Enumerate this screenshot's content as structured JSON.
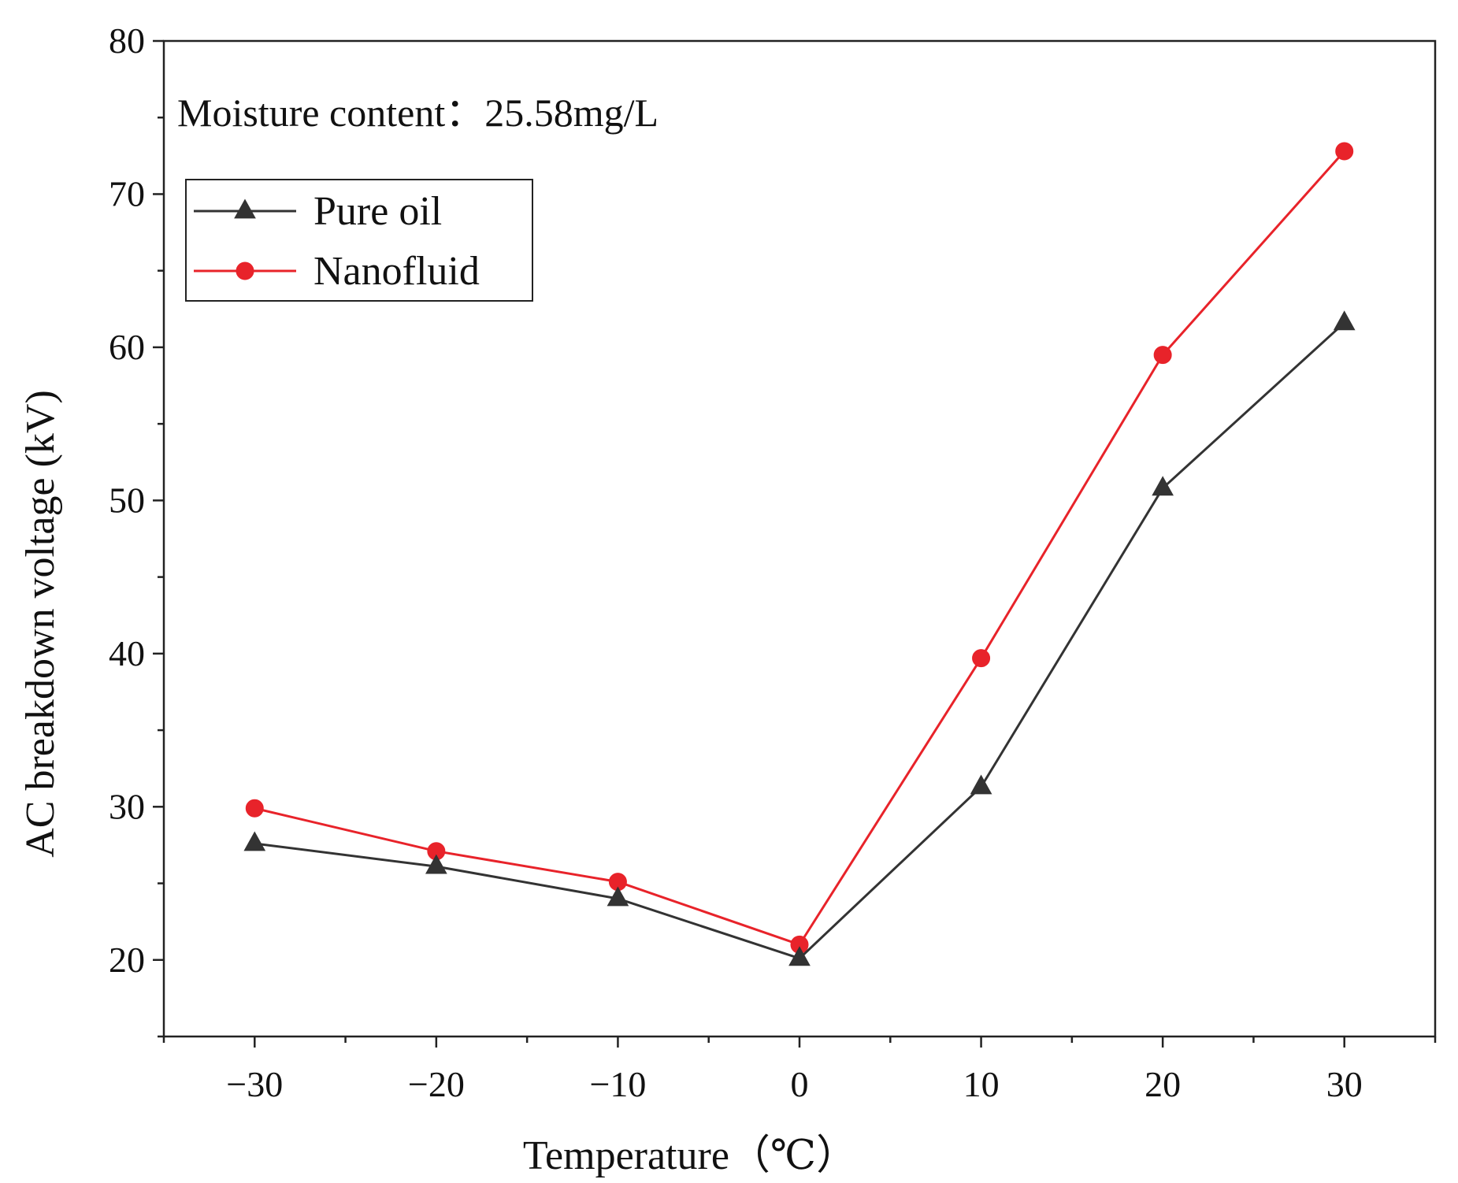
{
  "chart_data": {
    "type": "line",
    "title": "",
    "xlabel": "Temperature（℃）",
    "ylabel": "AC breakdown voltage (kV)",
    "annotation": "Moisture content：25.58mg/L",
    "x": [
      -30,
      -20,
      -10,
      0,
      10,
      20,
      30
    ],
    "xlim": [
      -35,
      35
    ],
    "ylim": [
      15,
      80
    ],
    "xticks": [
      -30,
      -20,
      -10,
      0,
      10,
      20,
      30
    ],
    "xtick_labels": [
      "−30",
      "−20",
      "−10",
      "0",
      "10",
      "20",
      "30"
    ],
    "yticks": [
      20,
      30,
      40,
      50,
      60,
      70,
      80
    ],
    "ytick_labels": [
      "20",
      "30",
      "40",
      "50",
      "60",
      "70",
      "80"
    ],
    "legend_position": "top-left",
    "grid": false,
    "series": [
      {
        "name": "Pure oil",
        "color": "#333333",
        "marker": "triangle",
        "values": [
          27.6,
          26.1,
          24.0,
          20.1,
          31.3,
          50.8,
          61.6
        ]
      },
      {
        "name": "Nanofluid",
        "color": "#e8232a",
        "marker": "circle",
        "values": [
          29.9,
          27.1,
          25.1,
          21.0,
          39.7,
          59.5,
          72.8
        ]
      }
    ]
  }
}
